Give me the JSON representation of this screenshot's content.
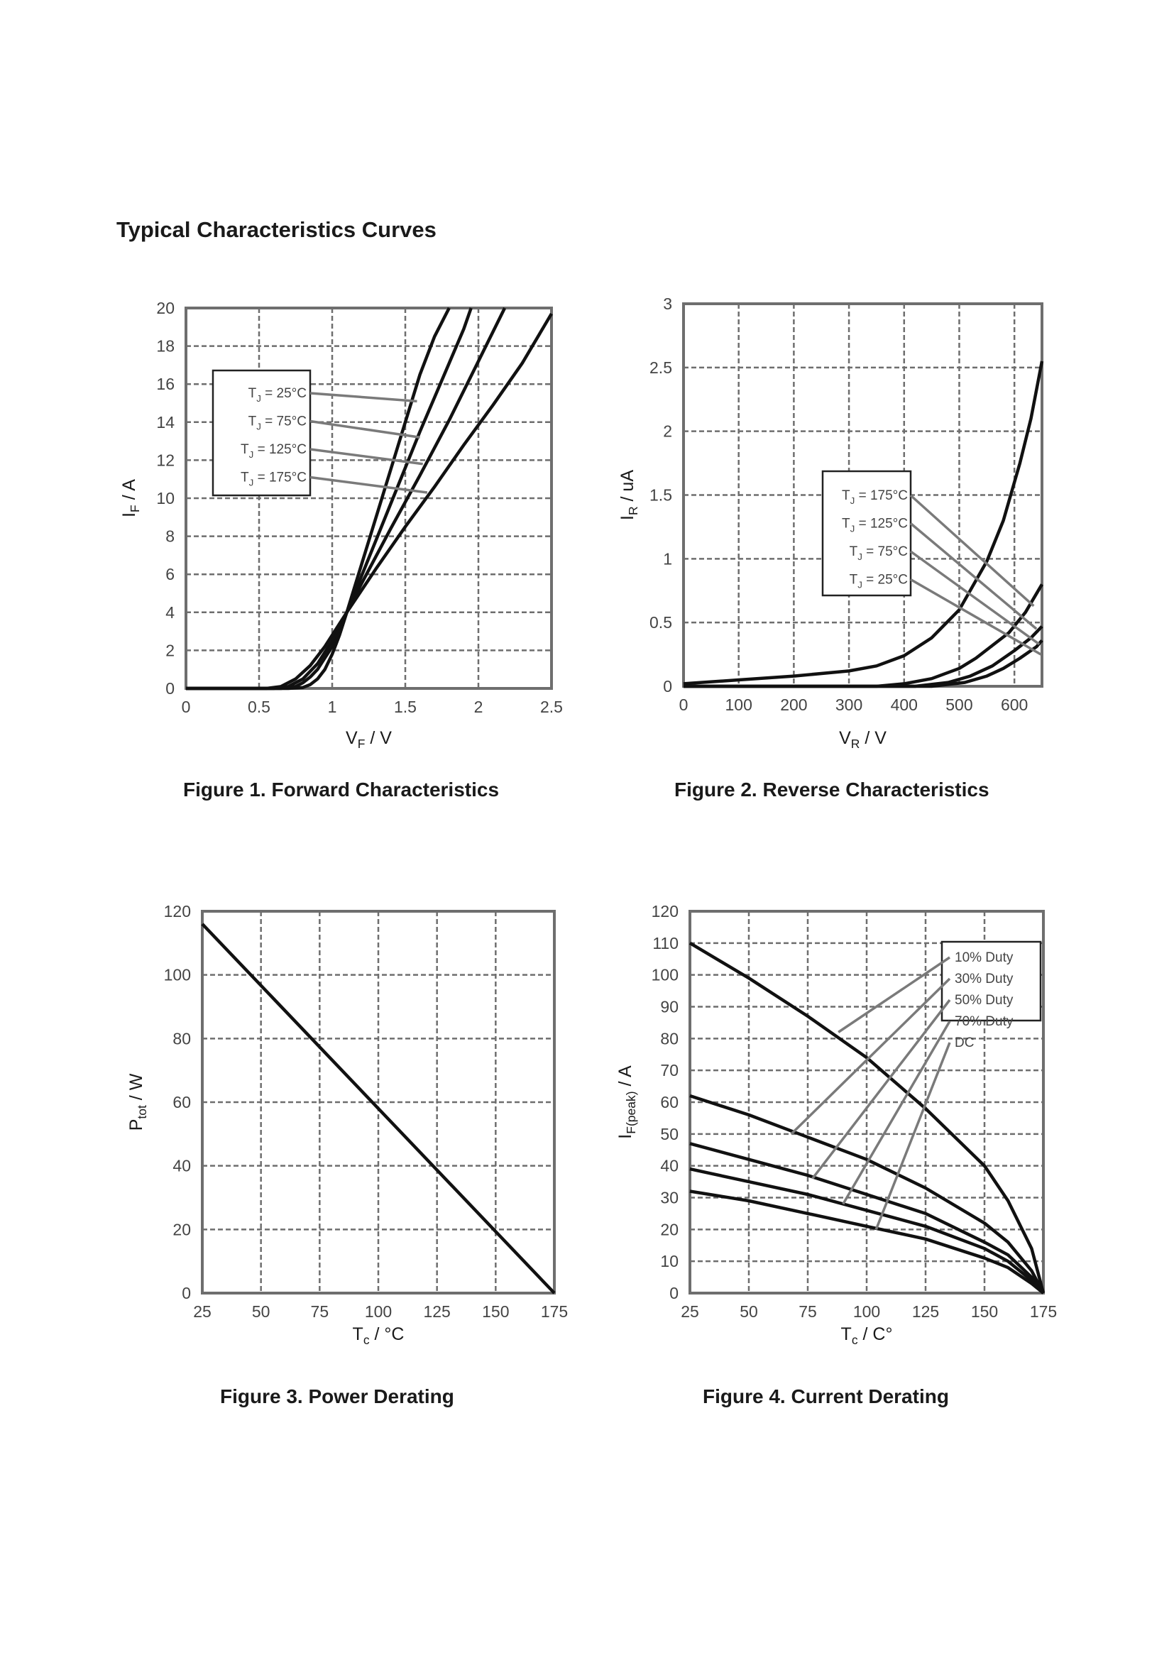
{
  "page": {
    "heading": "Typical Characteristics Curves"
  },
  "chart_data": [
    {
      "id": "fig1",
      "type": "line",
      "caption": "Figure 1. Forward Characteristics",
      "xlabel": {
        "main": "V",
        "sub": "F",
        "unit": " / V"
      },
      "ylabel": {
        "main": "I",
        "sub": "F",
        "unit": " / A"
      },
      "xlim": [
        0,
        2.5
      ],
      "ylim": [
        0,
        20
      ],
      "xticks": [
        0,
        0.5,
        1,
        1.5,
        2,
        2.5
      ],
      "xtick_labels": [
        "0",
        "0.5",
        "1",
        "1.5",
        "2",
        "2.5"
      ],
      "yticks": [
        0,
        2,
        4,
        6,
        8,
        10,
        12,
        14,
        16,
        18,
        20
      ],
      "ytick_labels": [
        "0",
        "2",
        "4",
        "6",
        "8",
        "10",
        "12",
        "14",
        "16",
        "18",
        "20"
      ],
      "grid": true,
      "legend": {
        "placement": "top-left",
        "entries": [
          {
            "main": "T",
            "sub": "J",
            "rest": " = 25°C",
            "target": [
              1.58,
              15.1
            ]
          },
          {
            "main": "T",
            "sub": "J",
            "rest": " = 75°C",
            "target": [
              1.6,
              13.2
            ]
          },
          {
            "main": "T",
            "sub": "J",
            "rest": " = 125°C",
            "target": [
              1.62,
              11.8
            ]
          },
          {
            "main": "T",
            "sub": "J",
            "rest": " = 175°C",
            "target": [
              1.65,
              10.3
            ]
          }
        ]
      },
      "series": [
        {
          "name": "TJ = 25°C",
          "x": [
            0,
            0.7,
            0.8,
            0.85,
            0.9,
            0.95,
            1.0,
            1.05,
            1.1,
            1.2,
            1.3,
            1.4,
            1.5,
            1.6,
            1.7,
            1.8
          ],
          "y": [
            0,
            0,
            0.05,
            0.2,
            0.5,
            1.0,
            1.8,
            2.8,
            4.0,
            6.5,
            9.0,
            11.5,
            14.0,
            16.5,
            18.5,
            20
          ]
        },
        {
          "name": "TJ = 75°C",
          "x": [
            0,
            0.65,
            0.75,
            0.8,
            0.85,
            0.9,
            1.0,
            1.1,
            1.2,
            1.3,
            1.4,
            1.5,
            1.6,
            1.7,
            1.8,
            1.9,
            1.95
          ],
          "y": [
            0,
            0,
            0.1,
            0.3,
            0.6,
            1.0,
            2.2,
            4.0,
            5.9,
            7.8,
            9.7,
            11.6,
            13.5,
            15.3,
            17.1,
            18.9,
            20
          ]
        },
        {
          "name": "TJ = 125°C",
          "x": [
            0,
            0.6,
            0.7,
            0.8,
            0.9,
            1.0,
            1.1,
            1.2,
            1.4,
            1.6,
            1.8,
            2.0,
            2.18
          ],
          "y": [
            0,
            0,
            0.1,
            0.5,
            1.3,
            2.5,
            4.0,
            5.5,
            8.4,
            11.2,
            14.1,
            17.2,
            20
          ]
        },
        {
          "name": "TJ = 175°C",
          "x": [
            0,
            0.55,
            0.65,
            0.75,
            0.85,
            0.95,
            1.05,
            1.1,
            1.3,
            1.5,
            1.7,
            1.9,
            2.1,
            2.3,
            2.5
          ],
          "y": [
            0,
            0,
            0.1,
            0.5,
            1.2,
            2.2,
            3.4,
            4.0,
            6.3,
            8.5,
            10.6,
            12.8,
            14.9,
            17.1,
            19.7
          ]
        }
      ]
    },
    {
      "id": "fig2",
      "type": "line",
      "caption": "Figure 2. Reverse Characteristics",
      "xlabel": {
        "main": "V",
        "sub": "R",
        "unit": " / V"
      },
      "ylabel": {
        "main": "I",
        "sub": "R",
        "unit": " / uA"
      },
      "xlim": [
        0,
        650
      ],
      "ylim": [
        0,
        3
      ],
      "xticks": [
        0,
        100,
        200,
        300,
        400,
        500,
        600
      ],
      "xtick_labels": [
        "0",
        "100",
        "200",
        "300",
        "400",
        "500",
        "600"
      ],
      "yticks": [
        0,
        0.5,
        1,
        1.5,
        2,
        2.5,
        3
      ],
      "ytick_labels": [
        "0",
        "0.5",
        "1",
        "1.5",
        "2",
        "2.5",
        "3"
      ],
      "grid": true,
      "legend": {
        "placement": "middle-center",
        "entries": [
          {
            "main": "T",
            "sub": "J",
            "rest": " = 175°C",
            "target": [
              635,
              0.63
            ]
          },
          {
            "main": "T",
            "sub": "J",
            "rest": " = 125°C",
            "target": [
              640,
              0.45
            ]
          },
          {
            "main": "T",
            "sub": "J",
            "rest": " = 75°C",
            "target": [
              645,
              0.33
            ]
          },
          {
            "main": "T",
            "sub": "J",
            "rest": " = 25°C",
            "target": [
              648,
              0.25
            ]
          }
        ]
      },
      "series": [
        {
          "name": "TJ = 175°C",
          "x": [
            0,
            100,
            200,
            300,
            350,
            400,
            450,
            500,
            550,
            580,
            610,
            630,
            650
          ],
          "y": [
            0.02,
            0.05,
            0.08,
            0.12,
            0.16,
            0.24,
            0.38,
            0.6,
            0.98,
            1.3,
            1.75,
            2.1,
            2.55
          ]
        },
        {
          "name": "TJ = 125°C",
          "x": [
            0,
            350,
            400,
            450,
            500,
            530,
            560,
            590,
            620,
            650
          ],
          "y": [
            0,
            0,
            0.02,
            0.06,
            0.14,
            0.22,
            0.32,
            0.42,
            0.58,
            0.8
          ]
        },
        {
          "name": "TJ = 75°C",
          "x": [
            0,
            420,
            480,
            520,
            560,
            600,
            630,
            650
          ],
          "y": [
            0,
            0,
            0.03,
            0.08,
            0.16,
            0.28,
            0.38,
            0.47
          ]
        },
        {
          "name": "TJ = 25°C",
          "x": [
            0,
            450,
            510,
            550,
            580,
            610,
            640,
            650
          ],
          "y": [
            0,
            0,
            0.03,
            0.08,
            0.14,
            0.22,
            0.31,
            0.36
          ]
        }
      ]
    },
    {
      "id": "fig3",
      "type": "line",
      "caption": "Figure 3. Power Derating",
      "xlabel": {
        "main": "T",
        "sub": "c",
        "unit": " / °C"
      },
      "ylabel": {
        "main": "P",
        "sub": "tot",
        "unit": " / W"
      },
      "xlim": [
        25,
        175
      ],
      "ylim": [
        0,
        120
      ],
      "xticks": [
        25,
        50,
        75,
        100,
        125,
        150,
        175
      ],
      "xtick_labels": [
        "25",
        "50",
        "75",
        "100",
        "125",
        "150",
        "175"
      ],
      "yticks": [
        0,
        20,
        40,
        60,
        80,
        100,
        120
      ],
      "ytick_labels": [
        "0",
        "20",
        "40",
        "60",
        "80",
        "100",
        "120"
      ],
      "grid": true,
      "series": [
        {
          "name": "Ptot",
          "x": [
            25,
            175
          ],
          "y": [
            116,
            0
          ]
        }
      ]
    },
    {
      "id": "fig4",
      "type": "line",
      "caption": "Figure 4. Current Derating",
      "xlabel": {
        "main": "T",
        "sub": "c",
        "unit": " / C°"
      },
      "ylabel": {
        "main": "I",
        "sub": "F(peak)",
        "unit": " / A"
      },
      "xlim": [
        25,
        175
      ],
      "ylim": [
        0,
        120
      ],
      "xticks": [
        25,
        50,
        75,
        100,
        125,
        150,
        175
      ],
      "xtick_labels": [
        "25",
        "50",
        "75",
        "100",
        "125",
        "150",
        "175"
      ],
      "yticks": [
        0,
        10,
        20,
        30,
        40,
        50,
        60,
        70,
        80,
        90,
        100,
        110,
        120
      ],
      "ytick_labels": [
        "0",
        "10",
        "20",
        "30",
        "40",
        "50",
        "60",
        "70",
        "80",
        "90",
        "100",
        "110",
        "120"
      ],
      "grid": true,
      "legend": {
        "placement": "top-right",
        "entries": [
          {
            "text": "10% Duty",
            "target": [
              88,
              82
            ]
          },
          {
            "text": "30% Duty",
            "target": [
              68,
              50
            ]
          },
          {
            "text": "50% Duty",
            "target": [
              77,
              36
            ]
          },
          {
            "text": "70% Duty",
            "target": [
              90,
              28
            ]
          },
          {
            "text": "DC",
            "target": [
              104,
              20
            ]
          }
        ]
      },
      "series": [
        {
          "name": "10% Duty",
          "x": [
            25,
            50,
            75,
            100,
            125,
            150,
            160,
            170,
            175
          ],
          "y": [
            110,
            99,
            87,
            74,
            58,
            40,
            29,
            14,
            0
          ]
        },
        {
          "name": "30% Duty",
          "x": [
            25,
            50,
            75,
            100,
            125,
            150,
            160,
            170,
            175
          ],
          "y": [
            62,
            56,
            49,
            42,
            33,
            22,
            16,
            7,
            0
          ]
        },
        {
          "name": "50% Duty",
          "x": [
            25,
            50,
            75,
            100,
            125,
            150,
            160,
            170,
            175
          ],
          "y": [
            47,
            42,
            37,
            31,
            25,
            16,
            12,
            5,
            0
          ]
        },
        {
          "name": "70% Duty",
          "x": [
            25,
            50,
            75,
            100,
            125,
            150,
            160,
            170,
            175
          ],
          "y": [
            39,
            35,
            31,
            26,
            21,
            14,
            10,
            4,
            0
          ]
        },
        {
          "name": "DC",
          "x": [
            25,
            50,
            75,
            100,
            125,
            150,
            160,
            170,
            175
          ],
          "y": [
            32,
            29,
            25,
            21,
            17,
            11,
            8,
            3,
            0
          ]
        }
      ]
    }
  ]
}
